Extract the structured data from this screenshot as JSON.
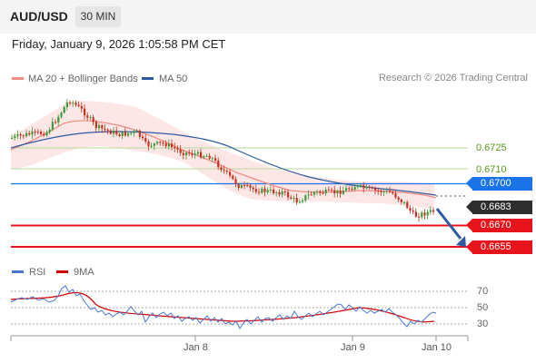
{
  "header": {
    "symbol": "AUD/USD",
    "timeframe": "30 MIN"
  },
  "datetime": "Friday, January 9, 2026 1:05:58 PM CET",
  "legend": {
    "ma20_label": "MA 20 + Bollinger Bands",
    "ma50_label": "MA 50",
    "ma20_color": "#f28b82",
    "ma50_color": "#2c5aa0"
  },
  "credit": "Research © 2026 Trading Central",
  "price_levels": {
    "green_1": "0.6725",
    "green_2": "0.6710",
    "pivot": "0.6700",
    "current": "0.6683",
    "support_1": "0.6670",
    "support_2": "0.6655"
  },
  "colors": {
    "pivot": "#1a73e8",
    "current": "#2d2d2d",
    "support": "#e8141b",
    "green_level": "#5a9a1e",
    "arrow": "#2c5aa0",
    "up_candle": "#3a9b3a",
    "down_candle": "#c8321e",
    "rsi_line": "#4a78d0",
    "rsi_ma": "#d40000"
  },
  "rsi_legend": {
    "rsi_label": "RSI",
    "ma_label": "9MA"
  },
  "rsi_levels": [
    "70",
    "50",
    "30"
  ],
  "x_axis": [
    "Jan 8",
    "Jan 9",
    "Jan 10"
  ]
}
